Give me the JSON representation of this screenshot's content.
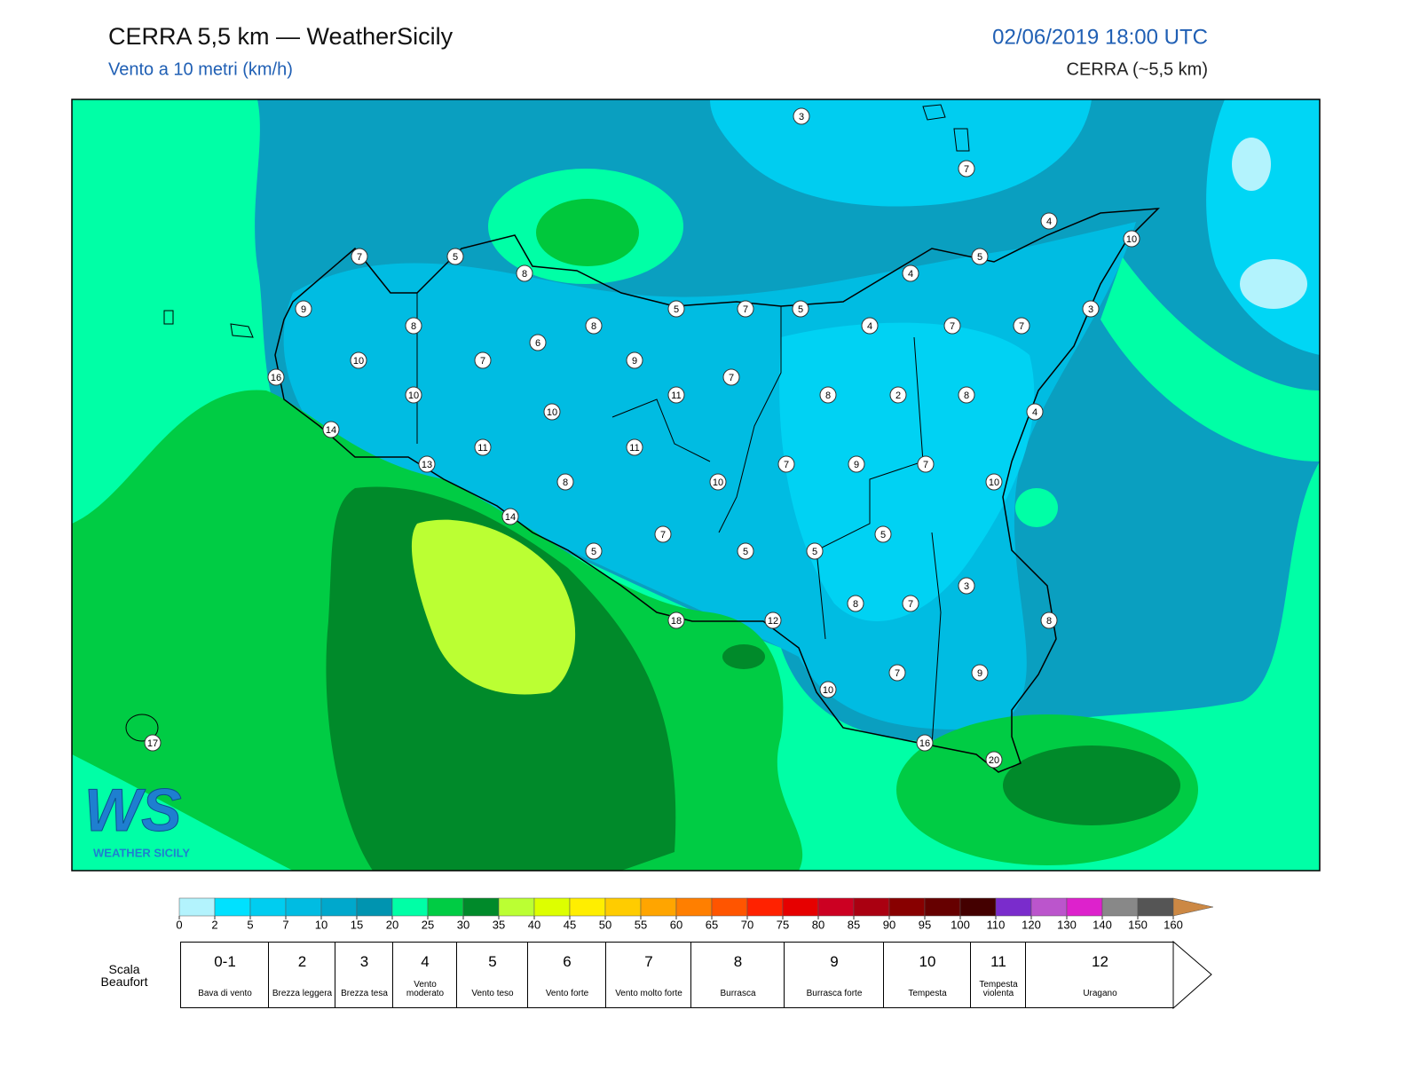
{
  "header": {
    "title": "CERRA 5,5 km — WeatherSicily",
    "subtitle": "Vento a 10 metri (km/h)",
    "datetime": "02/06/2019 18:00 UTC",
    "model": "CERRA (~5,5 km)"
  },
  "map": {
    "station_values": [
      3,
      7,
      4,
      10,
      5,
      4,
      7,
      5,
      8,
      9,
      5,
      7,
      5,
      4,
      7,
      7,
      3,
      8,
      6,
      8,
      10,
      7,
      9,
      16,
      7,
      11,
      8,
      2,
      8,
      10,
      10,
      4,
      14,
      11,
      11,
      13,
      7,
      9,
      7,
      8,
      10,
      10,
      14,
      7,
      5,
      5,
      5,
      5,
      3,
      8,
      7,
      18,
      12,
      8,
      7,
      9,
      10,
      17,
      16,
      20
    ]
  },
  "logo": {
    "mark": "WS",
    "text": "WEATHER SICILY"
  },
  "colorbar": {
    "ticks": [
      0,
      2,
      5,
      7,
      10,
      15,
      20,
      25,
      30,
      35,
      40,
      45,
      50,
      55,
      60,
      65,
      70,
      75,
      80,
      85,
      90,
      95,
      100,
      110,
      120,
      130,
      140,
      150,
      160
    ],
    "colors": [
      "#b3f3fd",
      "#00e1ff",
      "#00cdf0",
      "#00bce2",
      "#00a8cc",
      "#0094b0",
      "#00ffa6",
      "#00cc44",
      "#008a2a",
      "#bbff33",
      "#ddff00",
      "#ffee00",
      "#ffcc00",
      "#ffa500",
      "#ff7f00",
      "#ff5500",
      "#ff2200",
      "#e60000",
      "#cc0022",
      "#aa0011",
      "#880000",
      "#660000",
      "#440000",
      "#7a2ccc",
      "#bb55cc",
      "#dd22cc",
      "#888888",
      "#555555",
      "#000000",
      "#884422",
      "#cc8844"
    ]
  },
  "beaufort": {
    "title": "Scala Beaufort",
    "levels": [
      {
        "force": "0-1",
        "label": "Bava di vento"
      },
      {
        "force": "2",
        "label": "Brezza leggera"
      },
      {
        "force": "3",
        "label": "Brezza tesa"
      },
      {
        "force": "4",
        "label": "Vento moderato"
      },
      {
        "force": "5",
        "label": "Vento teso"
      },
      {
        "force": "6",
        "label": "Vento forte"
      },
      {
        "force": "7",
        "label": "Vento molto forte"
      },
      {
        "force": "8",
        "label": "Burrasca"
      },
      {
        "force": "9",
        "label": "Burrasca forte"
      },
      {
        "force": "10",
        "label": "Tempesta"
      },
      {
        "force": "11",
        "label": "Tempesta violenta"
      },
      {
        "force": "12",
        "label": "Uragano"
      }
    ]
  }
}
